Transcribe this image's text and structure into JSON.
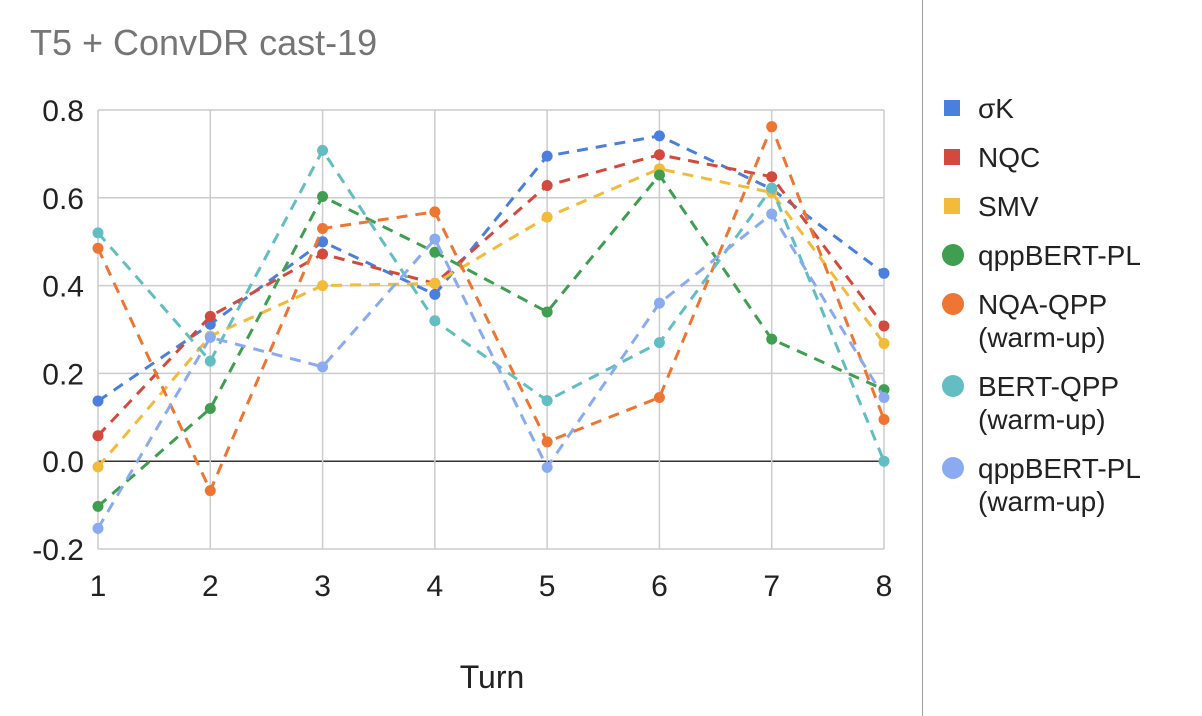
{
  "chart_data": {
    "type": "line",
    "title": "T5 + ConvDR cast-19",
    "xlabel": "Turn",
    "ylabel": "",
    "x": [
      1,
      2,
      3,
      4,
      5,
      6,
      7,
      8
    ],
    "x_tick_labels": [
      "1",
      "2",
      "3",
      "4",
      "5",
      "6",
      "7",
      "8"
    ],
    "y_tick_labels": [
      "0.8",
      "0.6",
      "0.4",
      "0.2",
      "0.0",
      "-0.2"
    ],
    "ylim": [
      -0.2,
      0.8
    ],
    "grid": true,
    "legend_position": "right",
    "series": [
      {
        "name": "σK",
        "color": "#4a7fdd",
        "marker": "square",
        "values": [
          0.137,
          0.312,
          0.5,
          0.38,
          0.695,
          0.741,
          0.62,
          0.428
        ]
      },
      {
        "name": "NQC",
        "color": "#d4493d",
        "marker": "square",
        "values": [
          0.058,
          0.33,
          0.472,
          0.405,
          0.628,
          0.698,
          0.648,
          0.308
        ]
      },
      {
        "name": "SMV",
        "color": "#f2bb3a",
        "marker": "square",
        "values": [
          -0.013,
          0.285,
          0.4,
          0.405,
          0.556,
          0.666,
          0.612,
          0.268
        ]
      },
      {
        "name": "qppBERT-PL",
        "color": "#3f9e4f",
        "marker": "circle",
        "values": [
          -0.103,
          0.12,
          0.603,
          0.476,
          0.34,
          0.652,
          0.278,
          0.163
        ]
      },
      {
        "name": "NQA-QPP\n(warm-up)",
        "color": "#ee7632",
        "marker": "circle",
        "values": [
          0.485,
          -0.067,
          0.53,
          0.568,
          0.044,
          0.145,
          0.762,
          0.095
        ]
      },
      {
        "name": "BERT-QPP\n(warm-up)",
        "color": "#62bec2",
        "marker": "circle",
        "values": [
          0.52,
          0.228,
          0.708,
          0.32,
          0.138,
          0.27,
          0.622,
          0.0
        ]
      },
      {
        "name": "qppBERT-PL\n(warm-up)",
        "color": "#8aabf0",
        "marker": "circle",
        "values": [
          -0.153,
          0.282,
          0.215,
          0.506,
          -0.014,
          0.36,
          0.563,
          0.145
        ]
      }
    ]
  }
}
